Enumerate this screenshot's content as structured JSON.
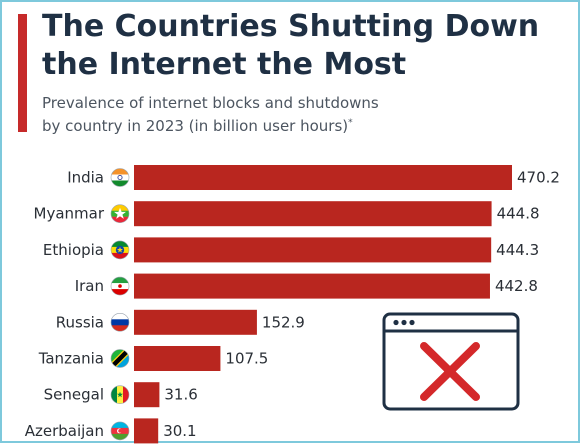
{
  "header": {
    "title_line1": "The Countries Shutting Down",
    "title_line2": "the Internet the Most",
    "subtitle_line1": "Prevalence of internet blocks and shutdowns",
    "subtitle_line2": "by country in 2023 (in billion user hours)",
    "subtitle_mark": "*"
  },
  "colors": {
    "accent": "#c62a2a",
    "bar": "#b9261f",
    "title": "#1f3044",
    "frame": "#7ec9dc",
    "cross": "#d4282a"
  },
  "decoration": {
    "browser_window_icon": "browser-window-with-red-x-icon"
  },
  "chart_data": {
    "type": "bar",
    "orientation": "horizontal",
    "title": "The Countries Shutting Down the Internet the Most",
    "subtitle": "Prevalence of internet blocks and shutdowns by country in 2023 (in billion user hours)*",
    "categories": [
      "India",
      "Myanmar",
      "Ethiopia",
      "Iran",
      "Russia",
      "Tanzania",
      "Senegal",
      "Azerbaijan"
    ],
    "values": [
      470.2,
      444.8,
      444.3,
      442.8,
      152.9,
      107.5,
      31.6,
      30.1
    ],
    "value_labels": [
      "470.2",
      "444.8",
      "444.3",
      "442.8",
      "152.9",
      "107.5",
      "31.6",
      "30.1"
    ],
    "flags": [
      "india-flag-icon",
      "myanmar-flag-icon",
      "ethiopia-flag-icon",
      "iran-flag-icon",
      "russia-flag-icon",
      "tanzania-flag-icon",
      "senegal-flag-icon",
      "azerbaijan-flag-icon"
    ],
    "xlim": [
      0,
      470.2
    ],
    "grid": false,
    "legend": "none"
  }
}
